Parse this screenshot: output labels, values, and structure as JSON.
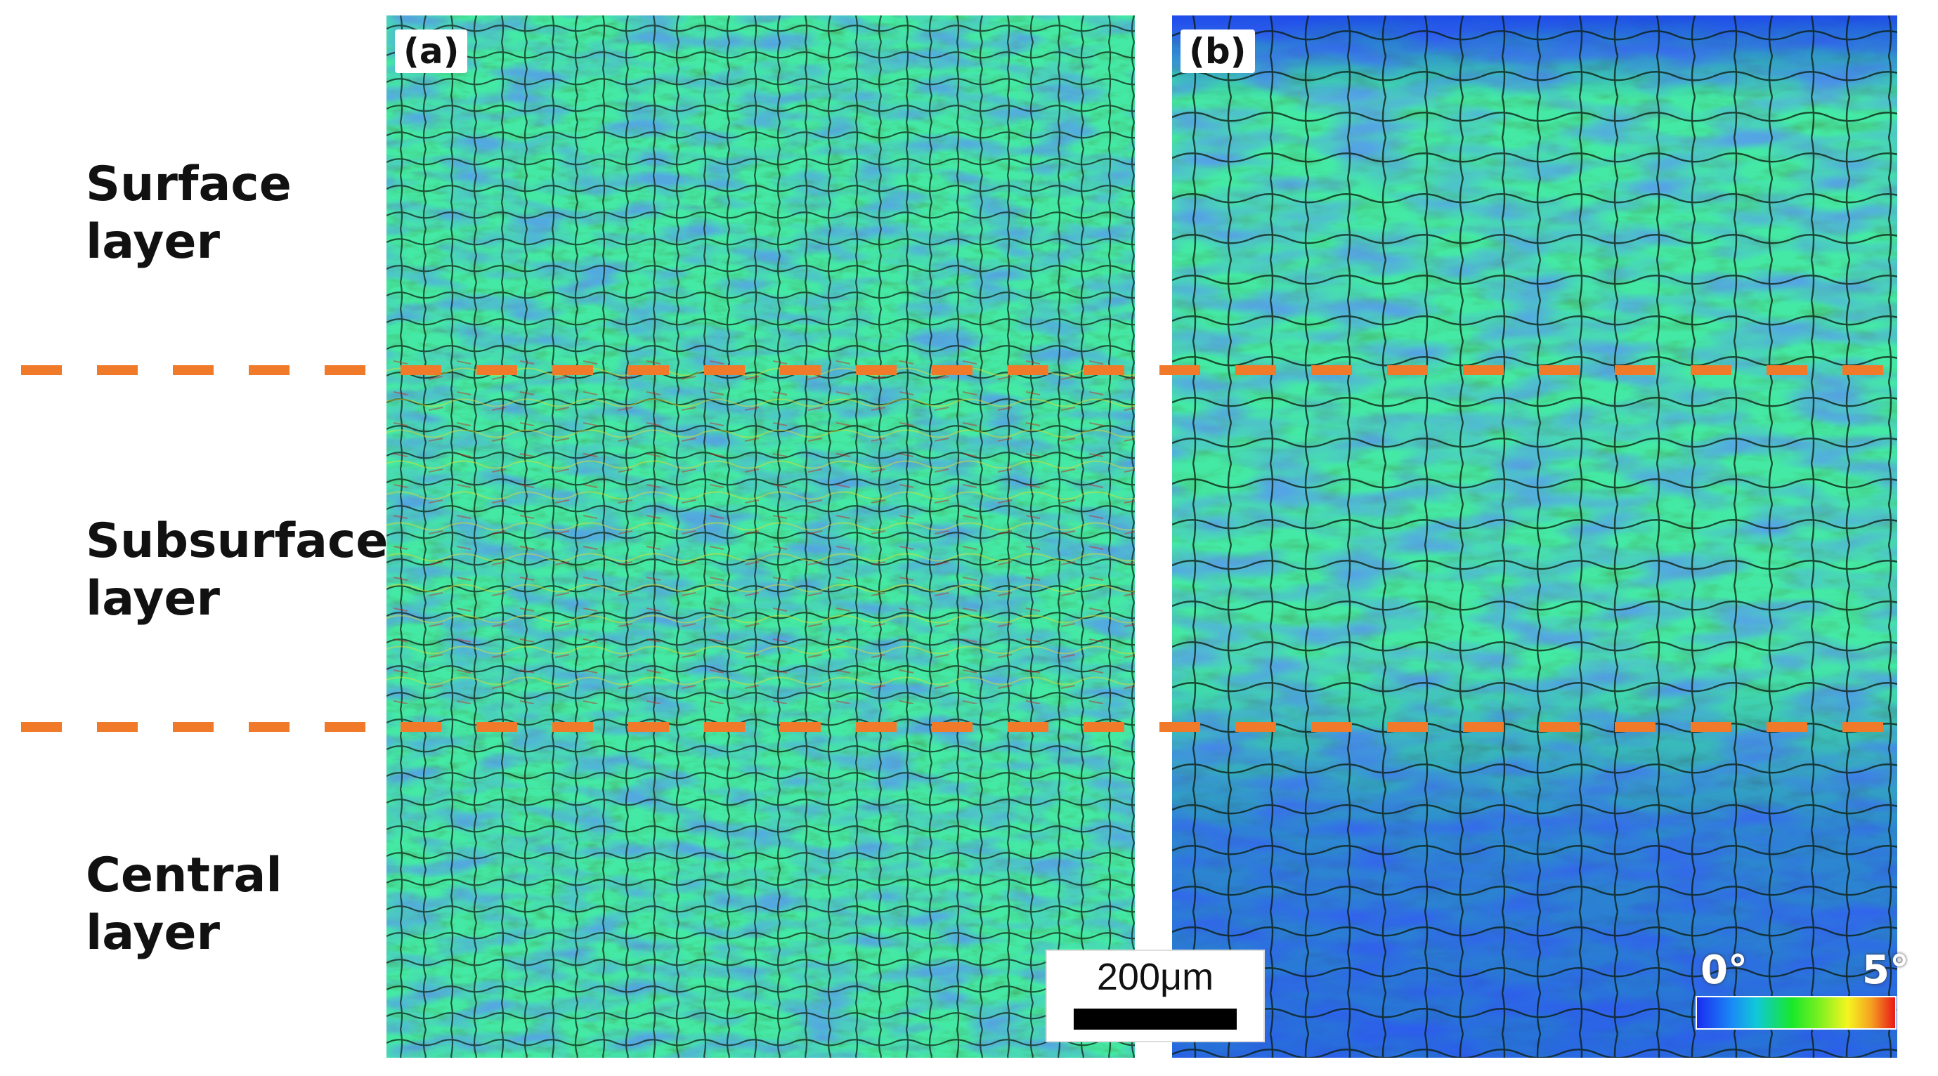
{
  "figure": {
    "panels": [
      {
        "tag": "(a)"
      },
      {
        "tag": "(b)"
      }
    ],
    "layers": [
      {
        "line1": "Surface",
        "line2": "layer"
      },
      {
        "line1": "Subsurface",
        "line2": "layer"
      },
      {
        "line1": "Central",
        "line2": "layer"
      }
    ],
    "scale_bar": {
      "label": "200μm"
    },
    "color_key": {
      "min_label": "0°",
      "max_label": "5°"
    },
    "colors": {
      "divider": "#f07a2a",
      "low": "#1a2cf0",
      "mid": "#18e82a",
      "high": "#e81818"
    }
  }
}
